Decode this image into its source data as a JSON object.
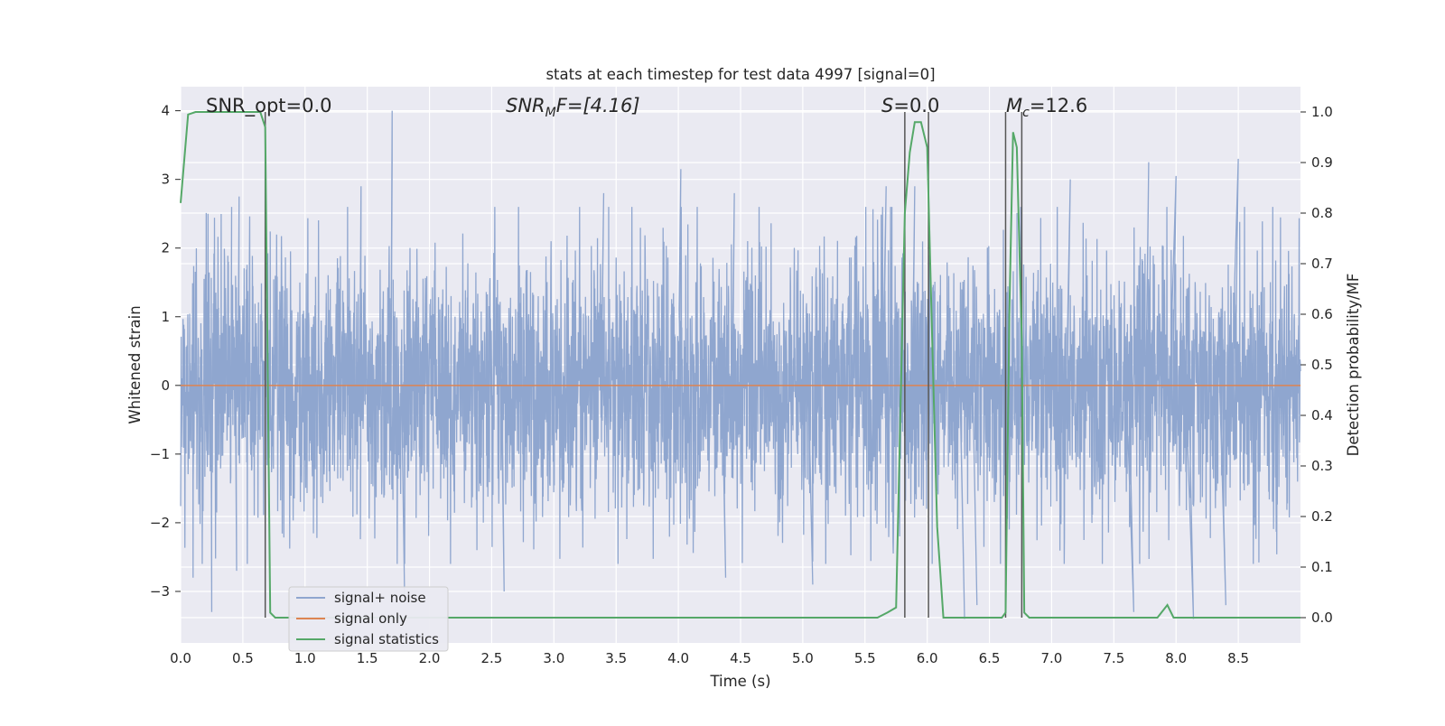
{
  "chart_data": {
    "type": "line",
    "title": "stats at each timestep for test data 4997 [signal=0]",
    "xlabel": "Time (s)",
    "ylabel_left": "Whitened strain",
    "ylabel_right": "Detection probability/MF",
    "xlim": [
      0.0,
      9.0
    ],
    "ylim_left": [
      -3.75,
      4.35
    ],
    "ylim_right": [
      -0.05,
      1.05
    ],
    "xticks": [
      "0.0",
      "0.5",
      "1.0",
      "1.5",
      "2.0",
      "2.5",
      "3.0",
      "3.5",
      "4.0",
      "4.5",
      "5.0",
      "5.5",
      "6.0",
      "6.5",
      "7.0",
      "7.5",
      "8.0",
      "8.5"
    ],
    "xtick_values": [
      0.0,
      0.5,
      1.0,
      1.5,
      2.0,
      2.5,
      3.0,
      3.5,
      4.0,
      4.5,
      5.0,
      5.5,
      6.0,
      6.5,
      7.0,
      7.5,
      8.0,
      8.5
    ],
    "yticks_left": [
      "4",
      "3",
      "2",
      "1",
      "0",
      "−1",
      "−2",
      "−3"
    ],
    "ytick_values_left": [
      4,
      3,
      2,
      1,
      0,
      -1,
      -2,
      -3
    ],
    "yticks_right": [
      "1.0",
      "0.9",
      "0.8",
      "0.7",
      "0.6",
      "0.5",
      "0.4",
      "0.3",
      "0.2",
      "0.1",
      "0.0"
    ],
    "ytick_values_right": [
      1.0,
      0.9,
      0.8,
      0.7,
      0.6,
      0.5,
      0.4,
      0.3,
      0.2,
      0.1,
      0.0
    ],
    "grid": true,
    "legend_placement": "lower-left",
    "annotations": {
      "snr_opt": "SNR_opt=0.0",
      "snr_mf_main": "SNR",
      "snr_mf_sub": "M",
      "snr_mf_tail": "F=[4.16]",
      "s_main": "S",
      "s_tail": "=0.0",
      "mc_main": "M",
      "mc_sub": "c",
      "mc_tail": "=12.6"
    },
    "vertical_lines_x": [
      0.68,
      5.82,
      6.01,
      6.63,
      6.76
    ],
    "series": [
      {
        "name": "signal+ noise",
        "axis": "left",
        "color": "#8fa6cf",
        "description_values": "dense noise ~N(0,1), range approx -3.4 to 4.0",
        "peaks_high": [
          [
            0.22,
            2.5
          ],
          [
            0.41,
            2.6
          ],
          [
            0.47,
            2.75
          ],
          [
            1.45,
            2.9
          ],
          [
            1.7,
            4.0
          ],
          [
            1.7,
            3.3
          ],
          [
            3.4,
            2.8
          ],
          [
            4.02,
            3.15
          ],
          [
            4.45,
            2.8
          ],
          [
            5.67,
            2.9
          ],
          [
            5.9,
            2.9
          ],
          [
            7.15,
            3.0
          ],
          [
            7.78,
            3.25
          ],
          [
            8.0,
            3.05
          ],
          [
            8.5,
            3.3
          ]
        ],
        "peaks_low": [
          [
            0.1,
            -2.8
          ],
          [
            0.25,
            -3.3
          ],
          [
            0.45,
            -2.7
          ],
          [
            1.8,
            -3.1
          ],
          [
            2.6,
            -3.0
          ],
          [
            4.38,
            -2.8
          ],
          [
            5.08,
            -2.9
          ],
          [
            6.3,
            -3.4
          ],
          [
            6.4,
            -3.2
          ],
          [
            7.66,
            -3.3
          ],
          [
            8.14,
            -3.4
          ],
          [
            8.4,
            -3.2
          ]
        ]
      },
      {
        "name": "signal only",
        "axis": "left",
        "color": "#dd8452",
        "x": [
          0.0,
          9.0
        ],
        "y": [
          0.0,
          0.0
        ]
      },
      {
        "name": "signal statistics",
        "axis": "right",
        "color": "#55a868",
        "x": [
          0.0,
          0.06,
          0.12,
          0.2,
          0.3,
          0.4,
          0.5,
          0.6,
          0.64,
          0.68,
          0.72,
          0.76,
          0.82,
          0.9,
          1.0,
          2.0,
          3.0,
          4.0,
          5.0,
          5.3,
          5.5,
          5.6,
          5.68,
          5.75,
          5.82,
          5.86,
          5.9,
          5.95,
          6.0,
          6.04,
          6.08,
          6.13,
          6.2,
          6.5,
          6.6,
          6.63,
          6.66,
          6.69,
          6.72,
          6.76,
          6.78,
          6.82,
          6.9,
          7.0,
          7.5,
          7.85,
          7.93,
          7.98,
          8.05,
          8.5,
          9.0
        ],
        "y": [
          0.82,
          0.995,
          1.0,
          1.0,
          1.0,
          1.0,
          1.0,
          1.0,
          1.0,
          0.97,
          0.01,
          0.0,
          0.0,
          0.0,
          0.0,
          0.0,
          0.0,
          0.0,
          0.0,
          0.0,
          0.0,
          0.0,
          0.01,
          0.02,
          0.8,
          0.92,
          0.98,
          0.98,
          0.93,
          0.55,
          0.18,
          0.0,
          0.0,
          0.0,
          0.0,
          0.01,
          0.6,
          0.96,
          0.93,
          0.55,
          0.01,
          0.0,
          0.0,
          0.0,
          0.0,
          0.0,
          0.025,
          0.0,
          0.0,
          0.0,
          0.0
        ]
      }
    ]
  }
}
